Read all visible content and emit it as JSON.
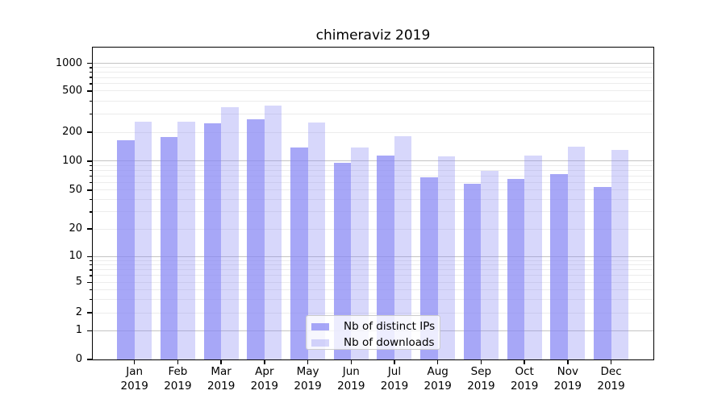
{
  "chart_data": {
    "type": "bar",
    "title": "chimeraviz 2019",
    "categories": [
      "Jan",
      "Feb",
      "Mar",
      "Apr",
      "May",
      "Jun",
      "Jul",
      "Aug",
      "Sep",
      "Oct",
      "Nov",
      "Dec"
    ],
    "year_label": "2019",
    "series": [
      {
        "name": "Nb of distinct IPs",
        "values": [
          165,
          180,
          245,
          265,
          140,
          96,
          114,
          68,
          58,
          65,
          74,
          54
        ]
      },
      {
        "name": "Nb of downloads",
        "values": [
          255,
          252,
          350,
          360,
          248,
          139,
          182,
          113,
          80,
          114,
          142,
          131
        ]
      }
    ],
    "xlabel": "",
    "ylabel": "",
    "y_ticks": [
      0,
      1,
      2,
      5,
      10,
      20,
      50,
      100,
      200,
      500,
      1000
    ],
    "ylim": [
      0,
      1480
    ],
    "yscale": "log-like-with-zero-baseline",
    "grid": "horizontal major and minor",
    "legend_position": "lower center",
    "colors": {
      "bar_base": "#8686f4",
      "ips_fill": "rgba(134,134,244,0.73)",
      "downloads_fill": "rgba(134,134,244,0.33)",
      "major_grid": "#c4c4c4",
      "minor_grid": "#ececec",
      "spine": "#000000",
      "legend_border": "#cccccc"
    }
  }
}
